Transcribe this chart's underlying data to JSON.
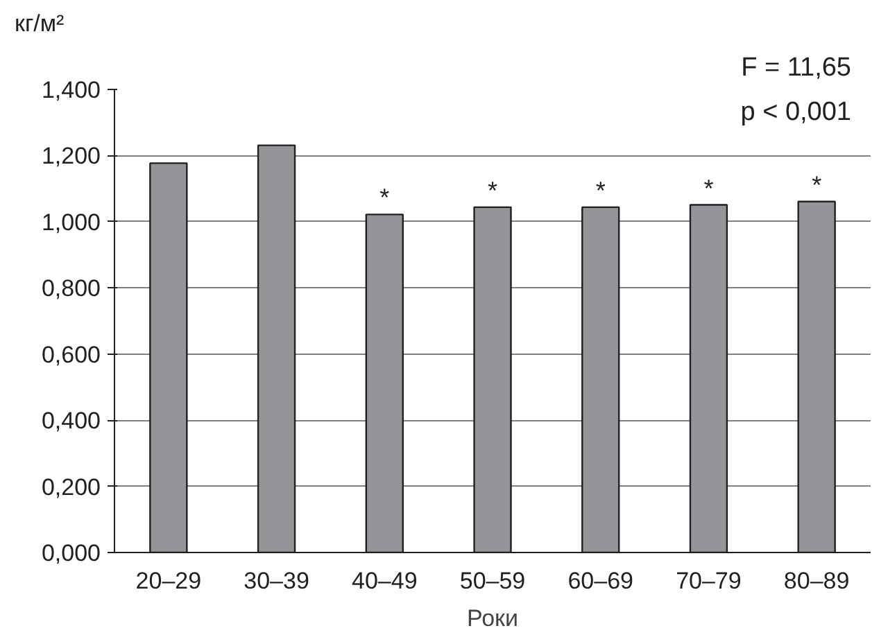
{
  "chart_data": {
    "type": "bar",
    "xlabel": "Роки",
    "ylabel": "кг/м²",
    "categories": [
      "20–29",
      "30–39",
      "40–49",
      "50–59",
      "60–69",
      "70–79",
      "80–89"
    ],
    "values": [
      1.177,
      1.231,
      1.022,
      1.044,
      1.044,
      1.051,
      1.061
    ],
    "color": "#939598",
    "ylim": [
      0,
      1.4
    ],
    "yticks": [
      {
        "value": 0,
        "label": "0,000"
      },
      {
        "value": 0.2,
        "label": "0,200"
      },
      {
        "value": 0.4,
        "label": "0,400"
      },
      {
        "value": 0.6,
        "label": "0,600"
      },
      {
        "value": 0.8,
        "label": "0,800"
      },
      {
        "value": 1.0,
        "label": "1,000"
      },
      {
        "value": 1.2,
        "label": "1,200"
      },
      {
        "value": 1.4,
        "label": "1,400"
      }
    ],
    "grid": "y",
    "annotations": [
      "F = 11,65",
      "p < 0,001",
      {
        "text": "*",
        "x": "40–49",
        "y": 1.022
      },
      {
        "text": "*",
        "x": "50–59",
        "y": 1.044
      },
      {
        "text": "*",
        "x": "60–69",
        "y": 1.044
      },
      {
        "text": "*",
        "x": "70–79",
        "y": 1.051
      },
      {
        "text": "*",
        "x": "80–89",
        "y": 1.061
      }
    ]
  }
}
